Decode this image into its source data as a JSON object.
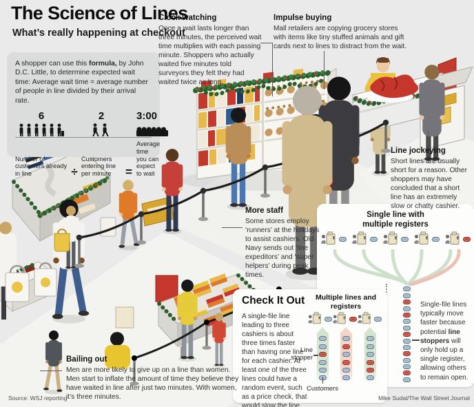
{
  "header": {
    "title": "The Science of Lines",
    "subtitle": "What’s really happening at checkout"
  },
  "formula_box": {
    "intro_pre": "A shopper can use this ",
    "intro_bold": "formula,",
    "intro_post": " by John D.C. Little, to determine expected wait time: Average wait time = average number of people in line divided by their arrival rate.",
    "operators": {
      "divide": "÷",
      "equals": "="
    },
    "items": [
      {
        "value": "6",
        "label": "Number of customers already in line"
      },
      {
        "value": "2",
        "label": "Customers entering line per minute"
      },
      {
        "value": "3:00",
        "label": "Average time you can expect to wait"
      }
    ]
  },
  "annotations": [
    {
      "title": "Clock watching",
      "body": "Once a wait lasts longer than three minutes, the perceived wait time multiplies with each passing minute. Shoppers who actually waited five minutes told surveyors they felt they had waited twice as long."
    },
    {
      "title": "Impulse buying",
      "body": "Mall retailers are copying grocery stores with items like tiny stuffed animals and gift cards next to lines to distract from the wait."
    },
    {
      "title": "Line jockeying",
      "body": "Short lines are usually short for a reason. Other shoppers may have concluded that a short line has an extremely slow or chatty cashier."
    },
    {
      "title": "More staff",
      "body": "Some stores employ ‘runners’ at the holidays to assist cashiers. Old Navy sends out ‘line expeditors’ and ‘super helpers’ during peak times."
    },
    {
      "title": "Bailing out",
      "body": "Men are more likely to give up on a line than women. Men start to inflate the amount of time they believe they have waited in line after just two minutes. With women, it’s three minutes."
    }
  ],
  "single_line_panel": {
    "title": "Single line with multiple registers",
    "register_dots": [
      "b",
      "b",
      "b",
      "b",
      "r"
    ],
    "queue_dots": [
      "b",
      "b",
      "r",
      "b",
      "r",
      "b",
      "b",
      "r",
      "b",
      "b",
      "r",
      "b",
      "b",
      "r",
      "b"
    ],
    "body_pre": "Single-file lines typically move faster because potential ",
    "body_bold": "line stoppers",
    "body_post": " will only hold up a single register, allowing others to remain open."
  },
  "check_it_out": {
    "title": "Check It Out",
    "body": "A single-file line leading to three cashiers is about three times faster than having one line for each cashier. At least one of the three lines could have a random event, such as a price check, that would slow the line.",
    "diagram_title": "Multiple lines and registers",
    "label_line_stopper": "Line stopper",
    "label_customers": "Customers",
    "register_dots": [
      "b",
      "r",
      "b"
    ],
    "lines": [
      [
        "b",
        "b",
        "r",
        "b",
        "b",
        "b"
      ],
      [
        "b",
        "r",
        "b",
        "r",
        "b",
        "b"
      ],
      [
        "b",
        "b",
        "b",
        "r",
        "r",
        "b"
      ]
    ]
  },
  "footer": {
    "source": "Source: WSJ reporting",
    "credit": "Mike Sudal/The Wall Street Journal"
  },
  "colors": {
    "accent_red": "#c23b2b",
    "garland_green": "#2c5f2d",
    "queue_blue": "#9db3c4",
    "arrow_green": "#d5e4ce",
    "arrow_pink": "#f3d4c8",
    "panel_gray": "#dbdddc"
  }
}
